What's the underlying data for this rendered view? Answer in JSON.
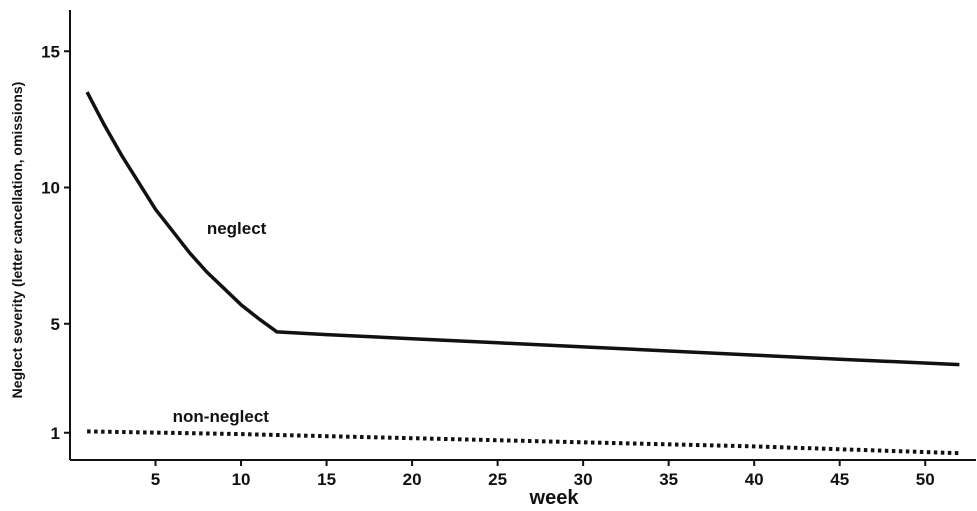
{
  "chart_data": {
    "type": "line",
    "title": "",
    "xlabel": "week",
    "ylabel": "Neglect severity (letter cancellation, omissions)",
    "xlim": [
      0,
      52.5
    ],
    "ylim": [
      0,
      16
    ],
    "x_ticks": [
      5,
      10,
      15,
      20,
      25,
      30,
      35,
      40,
      45,
      50
    ],
    "y_ticks": [
      1,
      5,
      10,
      15
    ],
    "grid": false,
    "series": [
      {
        "name": "neglect",
        "style": "solid",
        "color": "#111111",
        "x": [
          1,
          2,
          3,
          4,
          5,
          6,
          7,
          8,
          9,
          10,
          11,
          12.1,
          15,
          20,
          25,
          30,
          35,
          40,
          45,
          52
        ],
        "y": [
          13.5,
          12.3,
          11.2,
          10.2,
          9.2,
          8.4,
          7.6,
          6.9,
          6.3,
          5.7,
          5.2,
          4.7,
          4.6,
          4.45,
          4.3,
          4.15,
          4.0,
          3.85,
          3.7,
          3.5
        ]
      },
      {
        "name": "non-neglect",
        "style": "dotted",
        "color": "#111111",
        "x": [
          1,
          10,
          20,
          30,
          40,
          52
        ],
        "y": [
          1.05,
          0.95,
          0.8,
          0.65,
          0.5,
          0.25
        ]
      }
    ],
    "annotations": [
      {
        "text": "neglect",
        "x": 8,
        "y": 8.3
      },
      {
        "text": "non-neglect",
        "x": 6,
        "y": 1.4
      }
    ]
  }
}
